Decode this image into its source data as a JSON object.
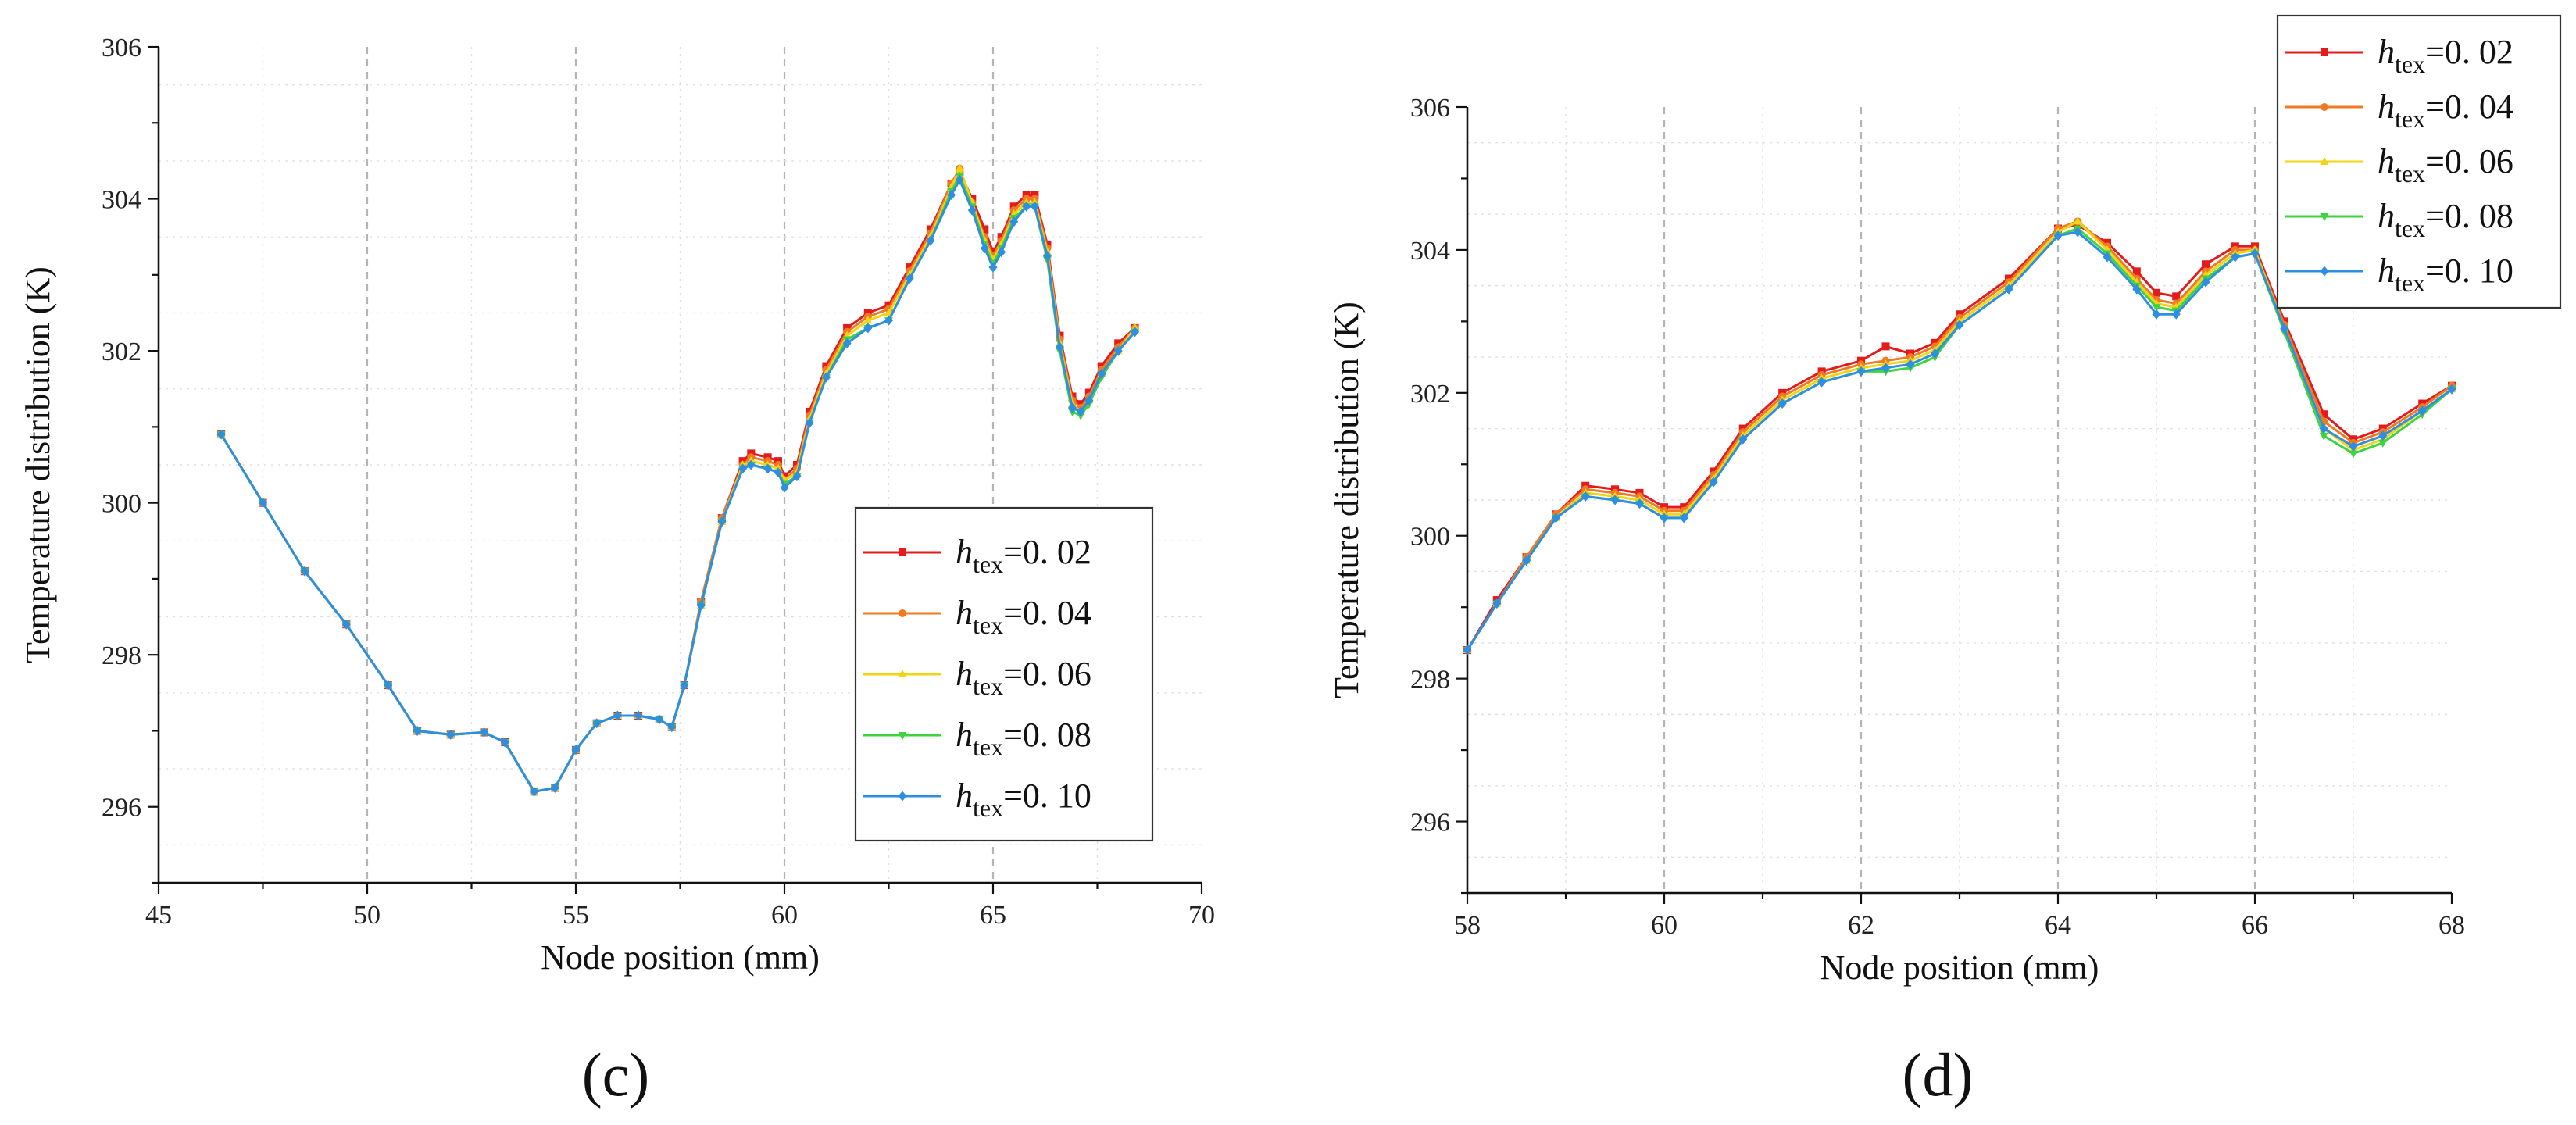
{
  "figure": {
    "panel_labels": [
      "(c)",
      "(d)"
    ]
  },
  "chart_data": [
    {
      "type": "line",
      "panel": "(c)",
      "xlabel": "Node position (mm)",
      "ylabel": "Temperature  distribution (K)",
      "xlim": [
        45,
        70
      ],
      "ylim": [
        295,
        306
      ],
      "xticks": [
        45,
        50,
        55,
        60,
        65,
        70
      ],
      "yticks": [
        296,
        298,
        300,
        302,
        304,
        306
      ],
      "grid": true,
      "legend_position": "center-right",
      "legend": [
        {
          "symbol": "h",
          "subscript": "tex",
          "value": "=0. 02",
          "color": "#e41a1c",
          "marker": "square"
        },
        {
          "symbol": "h",
          "subscript": "tex",
          "value": "=0. 04",
          "color": "#f07a22",
          "marker": "circle"
        },
        {
          "symbol": "h",
          "subscript": "tex",
          "value": "=0. 06",
          "color": "#f2d413",
          "marker": "triangle"
        },
        {
          "symbol": "h",
          "subscript": "tex",
          "value": "=0. 08",
          "color": "#3fd33f",
          "marker": "triangle-down"
        },
        {
          "symbol": "h",
          "subscript": "tex",
          "value": "=0. 10",
          "color": "#2e8fe0",
          "marker": "diamond"
        }
      ],
      "shared_prefix": {
        "x": [
          46.5,
          47.5,
          48.5,
          49.5,
          50.5,
          51.2,
          52.0,
          52.8,
          53.3,
          54.0,
          54.5,
          55.0,
          55.5,
          56.0,
          56.5,
          57.0,
          57.3
        ],
        "y": [
          300.9,
          300.0,
          299.1,
          298.4,
          297.6,
          297.0,
          296.95,
          296.98,
          296.85,
          296.2,
          296.25,
          296.75,
          297.1,
          297.2,
          297.2,
          297.15,
          297.05
        ]
      },
      "x": [
        57.6,
        58.0,
        58.5,
        59.0,
        59.2,
        59.6,
        59.85,
        60.0,
        60.3,
        60.6,
        61.0,
        61.5,
        62.0,
        62.5,
        63.0,
        63.5,
        64.0,
        64.2,
        64.5,
        64.8,
        65.0,
        65.2,
        65.5,
        65.8,
        66.0,
        66.3,
        66.6,
        66.9,
        67.1,
        67.3,
        67.6,
        68.0,
        68.4
      ],
      "series": [
        {
          "name": "h_tex=0.02",
          "values": [
            297.6,
            298.7,
            299.8,
            300.55,
            300.65,
            300.6,
            300.55,
            300.35,
            300.5,
            301.2,
            301.8,
            302.3,
            302.5,
            302.6,
            303.1,
            303.6,
            304.2,
            304.35,
            304.0,
            303.6,
            303.3,
            303.5,
            303.9,
            304.05,
            304.05,
            303.4,
            302.2,
            301.4,
            301.3,
            301.45,
            301.8,
            302.1,
            302.3
          ]
        },
        {
          "name": "h_tex=0.04",
          "values": [
            297.6,
            298.7,
            299.8,
            300.5,
            300.6,
            300.55,
            300.5,
            300.3,
            300.45,
            301.15,
            301.75,
            302.25,
            302.45,
            302.55,
            303.05,
            303.55,
            304.2,
            304.4,
            303.95,
            303.5,
            303.25,
            303.45,
            303.85,
            304.0,
            304.0,
            303.35,
            302.15,
            301.35,
            301.25,
            301.4,
            301.75,
            302.05,
            302.3
          ]
        },
        {
          "name": "h_tex=0.06",
          "values": [
            297.6,
            298.65,
            299.75,
            300.5,
            300.55,
            300.5,
            300.45,
            300.3,
            300.4,
            301.1,
            301.7,
            302.2,
            302.4,
            302.5,
            303.0,
            303.5,
            304.15,
            304.4,
            303.95,
            303.45,
            303.2,
            303.4,
            303.8,
            303.95,
            303.95,
            303.3,
            302.1,
            301.3,
            301.2,
            301.35,
            301.7,
            302.0,
            302.3
          ]
        },
        {
          "name": "h_tex=0.08",
          "values": [
            297.6,
            298.65,
            299.75,
            300.45,
            300.5,
            300.45,
            300.4,
            300.25,
            300.35,
            301.05,
            301.65,
            302.15,
            302.3,
            302.4,
            302.95,
            303.45,
            304.1,
            304.3,
            303.9,
            303.4,
            303.15,
            303.35,
            303.75,
            303.9,
            303.9,
            303.2,
            302.0,
            301.2,
            301.15,
            301.3,
            301.65,
            302.0,
            302.25
          ]
        },
        {
          "name": "h_tex=0.10",
          "values": [
            297.6,
            298.65,
            299.75,
            300.45,
            300.5,
            300.45,
            300.4,
            300.2,
            300.35,
            301.05,
            301.65,
            302.1,
            302.3,
            302.4,
            302.95,
            303.45,
            304.05,
            304.25,
            303.85,
            303.35,
            303.1,
            303.3,
            303.7,
            303.9,
            303.9,
            303.25,
            302.05,
            301.25,
            301.2,
            301.35,
            301.7,
            302.0,
            302.25
          ]
        }
      ]
    },
    {
      "type": "line",
      "panel": "(d)",
      "xlabel": "Node position (mm)",
      "ylabel": "Temperature  distribution (K)",
      "xlim": [
        58,
        68
      ],
      "ylim": [
        295,
        306
      ],
      "xticks": [
        58,
        60,
        62,
        64,
        66,
        68
      ],
      "yticks": [
        296,
        298,
        300,
        302,
        304,
        306
      ],
      "grid": true,
      "legend_position": "top-right",
      "legend": [
        {
          "symbol": "h",
          "subscript": "tex",
          "value": "=0. 02",
          "color": "#e41a1c",
          "marker": "square"
        },
        {
          "symbol": "h",
          "subscript": "tex",
          "value": "=0. 04",
          "color": "#f07a22",
          "marker": "circle"
        },
        {
          "symbol": "h",
          "subscript": "tex",
          "value": "=0. 06",
          "color": "#f2d413",
          "marker": "triangle"
        },
        {
          "symbol": "h",
          "subscript": "tex",
          "value": "=0. 08",
          "color": "#3fd33f",
          "marker": "triangle-down"
        },
        {
          "symbol": "h",
          "subscript": "tex",
          "value": "=0. 10",
          "color": "#2e8fe0",
          "marker": "diamond"
        }
      ],
      "x": [
        58.0,
        58.3,
        58.6,
        58.9,
        59.2,
        59.5,
        59.75,
        60.0,
        60.2,
        60.5,
        60.8,
        61.2,
        61.6,
        62.0,
        62.25,
        62.5,
        62.75,
        63.0,
        63.5,
        64.0,
        64.2,
        64.5,
        64.8,
        65.0,
        65.2,
        65.5,
        65.8,
        66.0,
        66.3,
        66.7,
        67.0,
        67.3,
        67.7,
        68.0
      ],
      "series": [
        {
          "name": "h_tex=0.02",
          "values": [
            298.4,
            299.1,
            299.7,
            300.3,
            300.7,
            300.65,
            300.6,
            300.4,
            300.4,
            300.9,
            301.5,
            302.0,
            302.3,
            302.45,
            302.65,
            302.55,
            302.7,
            303.1,
            303.6,
            304.3,
            304.35,
            304.1,
            303.7,
            303.4,
            303.35,
            303.8,
            304.05,
            304.05,
            303.0,
            301.7,
            301.35,
            301.5,
            301.85,
            302.1
          ]
        },
        {
          "name": "h_tex=0.04",
          "values": [
            298.4,
            299.05,
            299.7,
            300.3,
            300.65,
            300.6,
            300.55,
            300.35,
            300.35,
            300.85,
            301.45,
            301.95,
            302.25,
            302.4,
            302.45,
            302.5,
            302.65,
            303.05,
            303.55,
            304.3,
            304.4,
            304.05,
            303.6,
            303.3,
            303.25,
            303.7,
            304.0,
            304.0,
            302.95,
            301.6,
            301.3,
            301.45,
            301.8,
            302.1
          ]
        },
        {
          "name": "h_tex=0.06",
          "values": [
            298.4,
            299.05,
            299.65,
            300.25,
            300.6,
            300.55,
            300.5,
            300.3,
            300.3,
            300.8,
            301.4,
            301.9,
            302.2,
            302.35,
            302.4,
            302.45,
            302.6,
            303.0,
            303.5,
            304.25,
            304.4,
            304.0,
            303.55,
            303.25,
            303.2,
            303.65,
            303.95,
            304.0,
            302.9,
            301.5,
            301.2,
            301.35,
            301.75,
            302.05
          ]
        },
        {
          "name": "h_tex=0.08",
          "values": [
            298.4,
            299.05,
            299.65,
            300.25,
            300.55,
            300.5,
            300.45,
            300.25,
            300.25,
            300.75,
            301.35,
            301.85,
            302.15,
            302.3,
            302.3,
            302.35,
            302.5,
            302.95,
            303.45,
            304.2,
            304.3,
            303.95,
            303.5,
            303.2,
            303.15,
            303.6,
            303.9,
            303.95,
            302.85,
            301.4,
            301.15,
            301.3,
            301.7,
            302.05
          ]
        },
        {
          "name": "h_tex=0.10",
          "values": [
            298.4,
            299.05,
            299.65,
            300.25,
            300.55,
            300.5,
            300.45,
            300.25,
            300.25,
            300.75,
            301.35,
            301.85,
            302.15,
            302.3,
            302.35,
            302.4,
            302.55,
            302.95,
            303.45,
            304.2,
            304.25,
            303.9,
            303.45,
            303.1,
            303.1,
            303.55,
            303.9,
            303.95,
            302.9,
            301.5,
            301.25,
            301.4,
            301.75,
            302.05
          ]
        }
      ]
    }
  ]
}
